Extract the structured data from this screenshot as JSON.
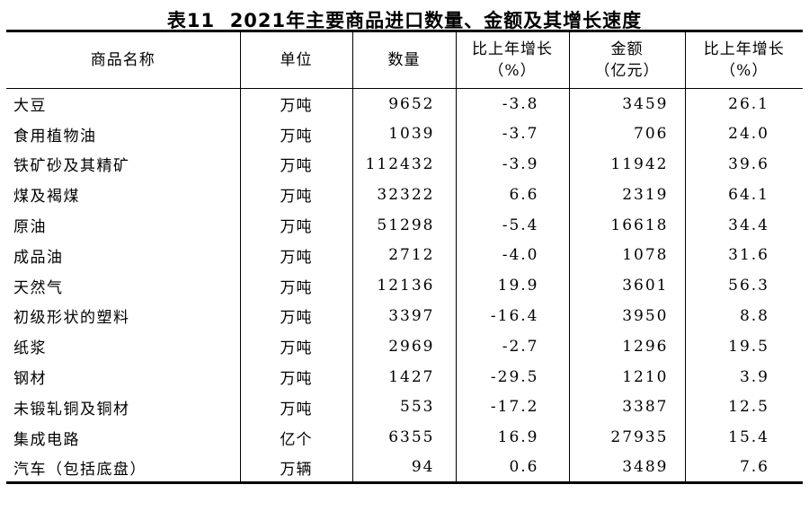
{
  "title": "表11  2021年主要商品进口数量、金额及其增长速度",
  "table": {
    "columns": [
      {
        "key": "name",
        "label": "商品名称",
        "sublabel": ""
      },
      {
        "key": "unit",
        "label": "单位",
        "sublabel": ""
      },
      {
        "key": "quantity",
        "label": "数量",
        "sublabel": ""
      },
      {
        "key": "quantity_growth",
        "label": "比上年增长",
        "sublabel": "（%）"
      },
      {
        "key": "amount",
        "label": "金额",
        "sublabel": "（亿元）"
      },
      {
        "key": "amount_growth",
        "label": "比上年增长",
        "sublabel": "（%）"
      }
    ],
    "rows": [
      [
        "大豆",
        "万吨",
        "9652",
        "-3.8",
        "3459",
        "26.1"
      ],
      [
        "食用植物油",
        "万吨",
        "1039",
        "-3.7",
        "706",
        "24.0"
      ],
      [
        "铁矿砂及其精矿",
        "万吨",
        "112432",
        "-3.9",
        "11942",
        "39.6"
      ],
      [
        "煤及褐煤",
        "万吨",
        "32322",
        "6.6",
        "2319",
        "64.1"
      ],
      [
        "原油",
        "万吨",
        "51298",
        "-5.4",
        "16618",
        "34.4"
      ],
      [
        "成品油",
        "万吨",
        "2712",
        "-4.0",
        "1078",
        "31.6"
      ],
      [
        "天然气",
        "万吨",
        "12136",
        "19.9",
        "3601",
        "56.3"
      ],
      [
        "初级形状的塑料",
        "万吨",
        "3397",
        "-16.4",
        "3950",
        "8.8"
      ],
      [
        "纸浆",
        "万吨",
        "2969",
        "-2.7",
        "1296",
        "19.5"
      ],
      [
        "钢材",
        "万吨",
        "1427",
        "-29.5",
        "1210",
        "3.9"
      ],
      [
        "未锻轧铜及铜材",
        "万吨",
        "553",
        "-17.2",
        "3387",
        "12.5"
      ],
      [
        "集成电路",
        "亿个",
        "6355",
        "16.9",
        "27935",
        "15.4"
      ],
      [
        "汽车（包括底盘）",
        "万辆",
        "94",
        "0.6",
        "3489",
        "7.6"
      ]
    ]
  },
  "chart_data": {
    "type": "table",
    "title": "表11 2021年主要商品进口数量、金额及其增长速度",
    "columns": [
      "商品名称",
      "单位",
      "数量",
      "比上年增长（%）",
      "金额（亿元）",
      "比上年增长（%）"
    ],
    "rows": [
      [
        "大豆",
        "万吨",
        9652,
        -3.8,
        3459,
        26.1
      ],
      [
        "食用植物油",
        "万吨",
        1039,
        -3.7,
        706,
        24.0
      ],
      [
        "铁矿砂及其精矿",
        "万吨",
        112432,
        -3.9,
        11942,
        39.6
      ],
      [
        "煤及褐煤",
        "万吨",
        32322,
        6.6,
        2319,
        64.1
      ],
      [
        "原油",
        "万吨",
        51298,
        -5.4,
        16618,
        34.4
      ],
      [
        "成品油",
        "万吨",
        2712,
        -4.0,
        1078,
        31.6
      ],
      [
        "天然气",
        "万吨",
        12136,
        19.9,
        3601,
        56.3
      ],
      [
        "初级形状的塑料",
        "万吨",
        3397,
        -16.4,
        3950,
        8.8
      ],
      [
        "纸浆",
        "万吨",
        2969,
        -2.7,
        1296,
        19.5
      ],
      [
        "钢材",
        "万吨",
        1427,
        -29.5,
        1210,
        3.9
      ],
      [
        "未锻轧铜及铜材",
        "万吨",
        553,
        -17.2,
        3387,
        12.5
      ],
      [
        "集成电路",
        "亿个",
        6355,
        16.9,
        27935,
        15.4
      ],
      [
        "汽车（包括底盘）",
        "万辆",
        94,
        0.6,
        3489,
        7.6
      ]
    ]
  }
}
